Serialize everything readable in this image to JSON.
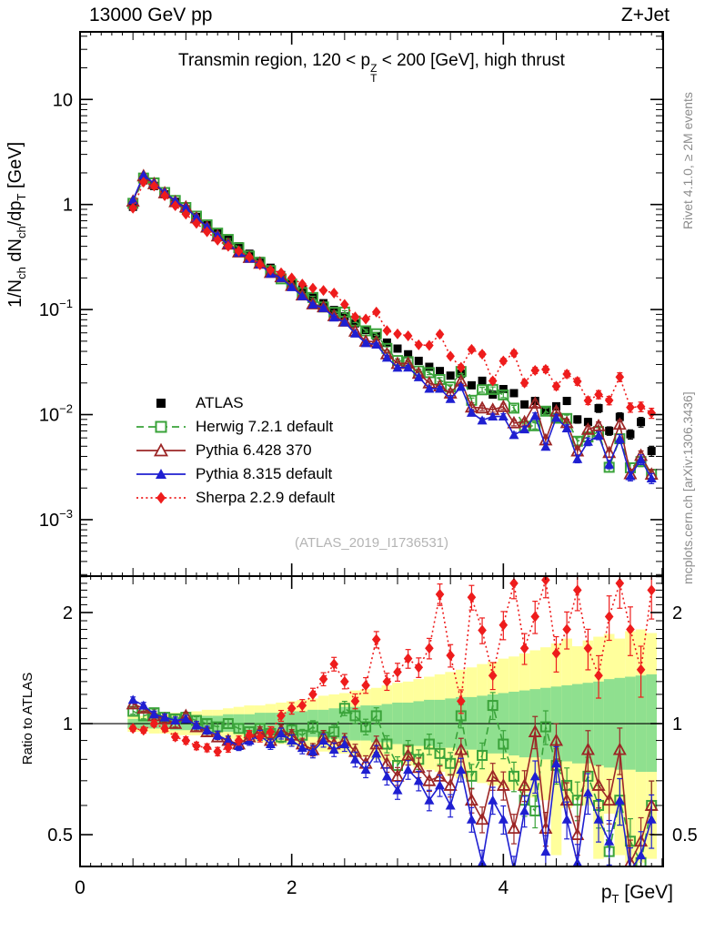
{
  "header": {
    "left": "13000 GeV pp",
    "right": "Z+Jet"
  },
  "title": {
    "prefix": "Transmin region, 120 < p",
    "p_sup": "Z",
    "p_sub": "T",
    "suffix": " < 200 [GeV], high thrust"
  },
  "side_notes": {
    "rivet": "Rivet 4.1.0, ≥ 2M events",
    "mcplots": "mcplots.cern.ch [arXiv:1306.3436]"
  },
  "watermark": "(ATLAS_2019_I1736531)",
  "ylabel_main": {
    "p1": "1/N",
    "s1": "ch",
    "p2": " dN",
    "s2": "ch",
    "p3": "/dp",
    "s3": "T",
    "p4": " [GeV]"
  },
  "xlabel": {
    "p1": "p",
    "s1": "T",
    "p2": " [GeV]"
  },
  "ratio_ylabel": "Ratio to ATLAS",
  "colors": {
    "frame": "#000000",
    "band_stat_green": "#8fe08f",
    "band_total_yellow": "#ffff9c",
    "note_gray": "#8c8c8c",
    "watermark_gray": "#b4b4b4"
  },
  "chart_data": {
    "type": "line",
    "title": "Transmin region, 120 < pT(Z) < 200 [GeV], high thrust",
    "xlabel": "pT [GeV]",
    "ylabel": "1/Nch dNch/dpT [GeV]",
    "ratio_label": "Ratio to ATLAS",
    "x_range": [
      0,
      5.51
    ],
    "y_range_main": [
      0.00029,
      44
    ],
    "y_scale": "log",
    "y_range_ratio": [
      0.41,
      2.51
    ],
    "ratio_scale": "log",
    "grid": false,
    "legend_position": "middle-left",
    "x_ticks": [
      {
        "v": 0,
        "label": "0"
      },
      {
        "v": 2,
        "label": "2"
      },
      {
        "v": 4,
        "label": "4"
      }
    ],
    "y_ticks_main": [
      {
        "v": 10,
        "base": "10",
        "exp": ""
      },
      {
        "v": 1,
        "base": "1",
        "exp": ""
      },
      {
        "v": 0.1,
        "base": "10",
        "exp": "−1"
      },
      {
        "v": 0.01,
        "base": "10",
        "exp": "−2"
      },
      {
        "v": 0.001,
        "base": "10",
        "exp": "−3"
      }
    ],
    "y_ticks_ratio": [
      {
        "v": 0.5,
        "label": "0.5"
      },
      {
        "v": 1,
        "label": "1"
      },
      {
        "v": 2,
        "label": "2"
      }
    ],
    "ratio_unity": 1,
    "error_bars": {
      "rel_at_start": 0.012,
      "rel_at_end": 0.11,
      "ratio_scale_factor": 1.5
    },
    "x": [
      0.5,
      0.6,
      0.7,
      0.8,
      0.9,
      1.0,
      1.1,
      1.2,
      1.3,
      1.4,
      1.5,
      1.6,
      1.7,
      1.8,
      1.9,
      2.0,
      2.1,
      2.2,
      2.3,
      2.4,
      2.5,
      2.6,
      2.7,
      2.8,
      2.9,
      3.0,
      3.1,
      3.2,
      3.3,
      3.4,
      3.5,
      3.6,
      3.7,
      3.8,
      3.9,
      4.0,
      4.1,
      4.2,
      4.3,
      4.4,
      4.5,
      4.6,
      4.7,
      4.8,
      4.9,
      5.0,
      5.1,
      5.2,
      5.3,
      5.4
    ],
    "series": [
      {
        "name": "atlas",
        "legend": "ATLAS",
        "color": "#000000",
        "marker": "square-filled",
        "line": "none",
        "values": [
          0.95,
          1.7,
          1.5,
          1.25,
          1.06,
          0.9,
          0.76,
          0.64,
          0.545,
          0.465,
          0.4,
          0.34,
          0.29,
          0.25,
          0.213,
          0.182,
          0.156,
          0.133,
          0.115,
          0.099,
          0.086,
          0.074,
          0.064,
          0.056,
          0.0485,
          0.0425,
          0.0375,
          0.0325,
          0.0285,
          0.026,
          0.0235,
          0.0245,
          0.019,
          0.021,
          0.0155,
          0.0175,
          0.016,
          0.0125,
          0.0135,
          0.011,
          0.012,
          0.0135,
          0.009,
          0.0085,
          0.0115,
          0.007,
          0.0095,
          0.0065,
          0.0085,
          0.0045
        ],
        "ratio": null
      },
      {
        "name": "herwig",
        "legend": "Herwig 7.2.1 default",
        "color": "#3aa33a",
        "marker": "square-open",
        "line": "dashed",
        "ratio": [
          1.08,
          1.05,
          1.07,
          1.04,
          1.03,
          1.04,
          1.02,
          1.0,
          0.98,
          1.0,
          0.97,
          0.95,
          0.97,
          0.94,
          0.92,
          0.96,
          0.93,
          0.98,
          0.92,
          0.95,
          1.1,
          1.05,
          0.98,
          1.05,
          0.88,
          0.77,
          0.85,
          0.8,
          0.88,
          0.83,
          0.78,
          1.05,
          0.72,
          0.82,
          1.12,
          0.88,
          0.72,
          0.62,
          0.58,
          0.98,
          0.77,
          0.68,
          0.62,
          0.72,
          0.6,
          0.45,
          0.62,
          0.48,
          0.42,
          0.6
        ]
      },
      {
        "name": "pythia6",
        "legend": "Pythia 6.428 370",
        "color": "#9c2626",
        "marker": "triangle-open",
        "line": "solid",
        "ratio": [
          1.13,
          1.1,
          1.05,
          1.03,
          1.0,
          1.05,
          0.98,
          0.95,
          0.92,
          0.9,
          0.88,
          0.92,
          0.95,
          0.9,
          0.96,
          0.93,
          0.88,
          0.85,
          0.92,
          0.88,
          0.9,
          0.84,
          0.78,
          0.88,
          0.78,
          0.72,
          0.82,
          0.76,
          0.7,
          0.72,
          0.68,
          0.85,
          0.62,
          0.55,
          0.72,
          0.68,
          0.52,
          0.68,
          0.95,
          0.52,
          0.9,
          0.62,
          0.5,
          0.85,
          0.68,
          0.62,
          0.85,
          0.42,
          0.48,
          0.6
        ]
      },
      {
        "name": "pythia8",
        "legend": "Pythia 8.315 default",
        "color": "#1f1fd1",
        "marker": "triangle-filled",
        "line": "solid",
        "ratio": [
          1.16,
          1.12,
          1.06,
          1.04,
          1.02,
          1.03,
          0.99,
          0.96,
          0.93,
          0.9,
          0.87,
          0.9,
          0.93,
          0.88,
          0.94,
          0.9,
          0.86,
          0.84,
          0.9,
          0.85,
          0.88,
          0.8,
          0.75,
          0.83,
          0.72,
          0.66,
          0.75,
          0.7,
          0.62,
          0.68,
          0.6,
          0.75,
          0.55,
          0.42,
          0.62,
          0.55,
          0.4,
          0.58,
          0.72,
          0.45,
          0.78,
          0.55,
          0.42,
          0.65,
          0.55,
          0.48,
          0.62,
          0.4,
          0.44,
          0.55
        ]
      },
      {
        "name": "sherpa",
        "legend": "Sherpa 2.2.9 default",
        "color": "#ee1c1c",
        "marker": "diamond-filled",
        "line": "dotted",
        "ratio": [
          0.97,
          0.96,
          1.0,
          0.97,
          0.92,
          0.9,
          0.87,
          0.86,
          0.84,
          0.86,
          0.9,
          0.93,
          0.92,
          0.95,
          1.05,
          1.1,
          1.12,
          1.2,
          1.32,
          1.45,
          1.3,
          1.15,
          1.27,
          1.69,
          1.3,
          1.38,
          1.5,
          1.42,
          1.6,
          2.24,
          1.53,
          1.15,
          2.2,
          1.79,
          1.35,
          1.85,
          2.4,
          1.6,
          1.95,
          2.45,
          1.55,
          1.8,
          2.3,
          1.6,
          1.35,
          1.95,
          2.4,
          1.8,
          1.4,
          2.3
        ]
      }
    ],
    "bands": {
      "description": "ATLAS uncertainty bands in ratio panel, stepped per bin",
      "green_hi": [
        1.03,
        1.03,
        1.04,
        1.04,
        1.04,
        1.04,
        1.05,
        1.05,
        1.05,
        1.06,
        1.06,
        1.06,
        1.07,
        1.07,
        1.07,
        1.08,
        1.08,
        1.09,
        1.09,
        1.1,
        1.11,
        1.11,
        1.12,
        1.12,
        1.13,
        1.14,
        1.14,
        1.15,
        1.16,
        1.16,
        1.17,
        1.18,
        1.18,
        1.19,
        1.2,
        1.21,
        1.22,
        1.23,
        1.24,
        1.25,
        1.26,
        1.27,
        1.28,
        1.29,
        1.3,
        1.32,
        1.33,
        1.34,
        1.35,
        1.36
      ],
      "green_lo": [
        0.97,
        0.97,
        0.97,
        0.97,
        0.96,
        0.96,
        0.96,
        0.95,
        0.95,
        0.95,
        0.94,
        0.94,
        0.94,
        0.93,
        0.93,
        0.93,
        0.92,
        0.92,
        0.92,
        0.91,
        0.9,
        0.9,
        0.9,
        0.89,
        0.89,
        0.88,
        0.88,
        0.87,
        0.87,
        0.86,
        0.86,
        0.85,
        0.85,
        0.84,
        0.83,
        0.83,
        0.82,
        0.81,
        0.81,
        0.8,
        0.79,
        0.79,
        0.78,
        0.78,
        0.77,
        0.76,
        0.75,
        0.75,
        0.74,
        0.74
      ],
      "yellow_hi": [
        1.05,
        1.05,
        1.06,
        1.06,
        1.07,
        1.07,
        1.08,
        1.09,
        1.09,
        1.1,
        1.11,
        1.12,
        1.12,
        1.13,
        1.14,
        1.15,
        1.16,
        1.17,
        1.19,
        1.2,
        1.21,
        1.23,
        1.24,
        1.25,
        1.27,
        1.29,
        1.3,
        1.32,
        1.34,
        1.36,
        1.38,
        1.4,
        1.42,
        1.45,
        1.47,
        1.5,
        1.52,
        1.55,
        1.58,
        1.61,
        1.65,
        1.7,
        1.62,
        1.68,
        1.72,
        1.75,
        1.7,
        1.78,
        1.8,
        1.76
      ],
      "yellow_lo": [
        0.95,
        0.95,
        0.94,
        0.94,
        0.93,
        0.93,
        0.93,
        0.92,
        0.92,
        0.91,
        0.9,
        0.89,
        0.89,
        0.88,
        0.88,
        0.87,
        0.86,
        0.85,
        0.84,
        0.83,
        0.83,
        0.81,
        0.81,
        0.8,
        0.79,
        0.78,
        0.77,
        0.76,
        0.75,
        0.74,
        0.72,
        0.71,
        0.7,
        0.69,
        0.68,
        0.67,
        0.66,
        0.65,
        0.63,
        0.62,
        0.44,
        0.59,
        0.62,
        0.6,
        0.43,
        0.57,
        0.44,
        0.42,
        0.42,
        0.43
      ]
    }
  }
}
